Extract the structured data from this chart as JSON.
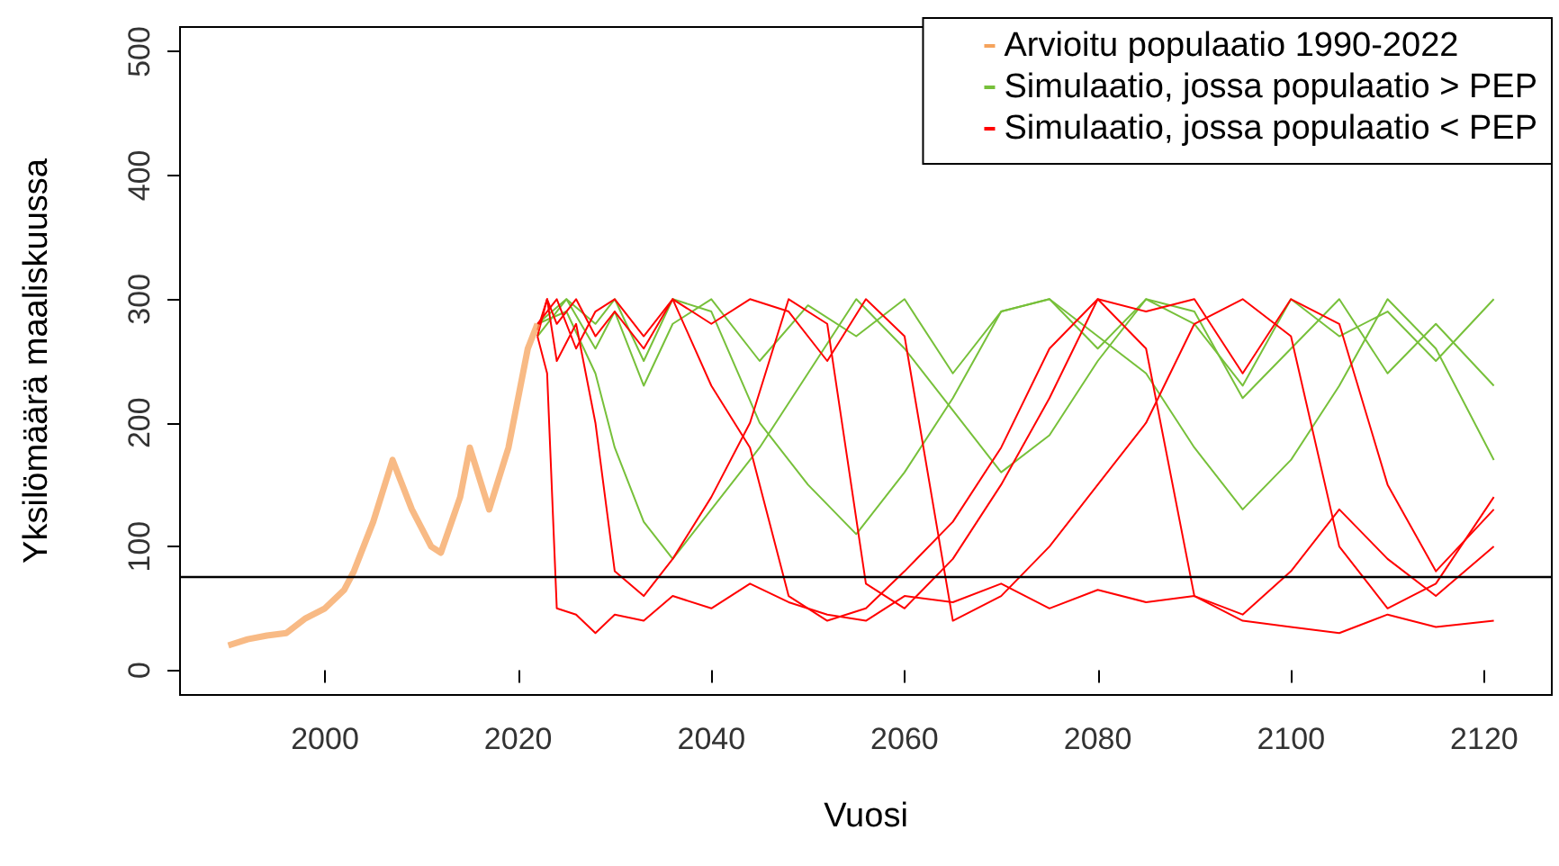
{
  "chart_data": {
    "type": "line",
    "xlabel": "Vuosi",
    "ylabel": "Yksilömäärä maaliskuussa",
    "xlim": [
      1985,
      2127
    ],
    "ylim": [
      -20,
      520
    ],
    "xticks": [
      2000,
      2020,
      2040,
      2060,
      2080,
      2100,
      2120
    ],
    "yticks": [
      0,
      100,
      200,
      300,
      400,
      500
    ],
    "grid": false,
    "legend": "top right",
    "marker": "none",
    "line_style": "solid",
    "ref_lines": [
      {
        "axis": "y",
        "value": 76,
        "color": "#000000"
      }
    ],
    "series": [
      {
        "name": "Arvioitu populaatio 1990-2022",
        "color": "#f5a35c",
        "x": [
          1990,
          1992,
          1994,
          1996,
          1998,
          2000,
          2002,
          2003,
          2005,
          2007,
          2009,
          2011,
          2012,
          2014,
          2015,
          2017,
          2019,
          2021,
          2022
        ],
        "values": [
          20,
          25,
          28,
          30,
          42,
          50,
          65,
          80,
          120,
          170,
          130,
          100,
          95,
          140,
          180,
          130,
          180,
          260,
          280
        ]
      },
      {
        "name": "Simulaatio, jossa populaatio > PEP",
        "color": "#77c03a",
        "x": [
          2022,
          2025,
          2028,
          2030,
          2033,
          2036,
          2040,
          2045,
          2050,
          2055,
          2060,
          2065,
          2070,
          2075,
          2080,
          2085,
          2090,
          2095,
          2100,
          2105,
          2110,
          2115,
          2121
        ],
        "values": [
          280,
          300,
          260,
          290,
          230,
          280,
          300,
          250,
          295,
          270,
          300,
          240,
          290,
          300,
          260,
          300,
          280,
          230,
          300,
          270,
          290,
          250,
          300
        ]
      },
      {
        "color": "#77c03a",
        "x": [
          2022,
          2025,
          2028,
          2030,
          2033,
          2036,
          2040,
          2045,
          2050,
          2055,
          2060,
          2065,
          2070,
          2075,
          2080,
          2085,
          2090,
          2095,
          2100,
          2105,
          2110,
          2115,
          2121
        ],
        "values": [
          280,
          290,
          240,
          180,
          120,
          90,
          130,
          180,
          240,
          300,
          260,
          210,
          160,
          190,
          250,
          300,
          290,
          220,
          260,
          300,
          240,
          280,
          230
        ]
      },
      {
        "color": "#77c03a",
        "x": [
          2022,
          2025,
          2028,
          2030,
          2033,
          2036,
          2040,
          2045,
          2050,
          2055,
          2060,
          2065,
          2070,
          2075,
          2080,
          2085,
          2090,
          2095,
          2100,
          2105,
          2110,
          2115,
          2121
        ],
        "values": [
          270,
          300,
          280,
          300,
          250,
          300,
          290,
          200,
          150,
          110,
          160,
          220,
          290,
          300,
          270,
          240,
          180,
          130,
          170,
          230,
          300,
          260,
          170
        ]
      },
      {
        "name": "Simulaatio, jossa populaatio < PEP",
        "color": "#ff0000",
        "x": [
          2022,
          2023,
          2024,
          2026,
          2028,
          2030,
          2033,
          2036,
          2040,
          2044,
          2048,
          2052,
          2056,
          2060,
          2065,
          2070,
          2075,
          2080,
          2085,
          2090,
          2095,
          2100,
          2105,
          2110,
          2115,
          2121
        ],
        "values": [
          270,
          240,
          50,
          45,
          30,
          45,
          40,
          60,
          50,
          70,
          55,
          45,
          40,
          60,
          55,
          70,
          50,
          65,
          55,
          60,
          40,
          35,
          30,
          45,
          35,
          40
        ]
      },
      {
        "color": "#ff0000",
        "x": [
          2022,
          2023,
          2024,
          2026,
          2028,
          2030,
          2033,
          2036,
          2040,
          2044,
          2048,
          2052,
          2056,
          2060,
          2065,
          2070,
          2075,
          2080,
          2085,
          2090,
          2095,
          2100,
          2105,
          2110,
          2115,
          2121
        ],
        "values": [
          270,
          300,
          250,
          280,
          200,
          80,
          60,
          90,
          140,
          200,
          300,
          280,
          70,
          50,
          90,
          150,
          220,
          300,
          260,
          60,
          45,
          80,
          130,
          90,
          60,
          100
        ]
      },
      {
        "color": "#ff0000",
        "x": [
          2022,
          2023,
          2024,
          2026,
          2028,
          2030,
          2033,
          2036,
          2040,
          2044,
          2048,
          2052,
          2056,
          2060,
          2065,
          2070,
          2075,
          2080,
          2085,
          2090,
          2095,
          2100,
          2105,
          2110,
          2115,
          2121
        ],
        "values": [
          280,
          290,
          300,
          260,
          290,
          300,
          270,
          300,
          230,
          180,
          60,
          40,
          50,
          80,
          120,
          180,
          260,
          300,
          290,
          300,
          240,
          300,
          280,
          150,
          80,
          130
        ]
      },
      {
        "color": "#ff0000",
        "x": [
          2022,
          2023,
          2024,
          2026,
          2028,
          2030,
          2033,
          2036,
          2040,
          2044,
          2048,
          2052,
          2056,
          2060,
          2065,
          2070,
          2075,
          2080,
          2085,
          2090,
          2095,
          2100,
          2105,
          2110,
          2115,
          2121
        ],
        "values": [
          275,
          300,
          280,
          300,
          270,
          290,
          260,
          300,
          280,
          300,
          290,
          250,
          300,
          270,
          40,
          60,
          100,
          150,
          200,
          280,
          300,
          270,
          100,
          50,
          70,
          140
        ]
      }
    ]
  }
}
